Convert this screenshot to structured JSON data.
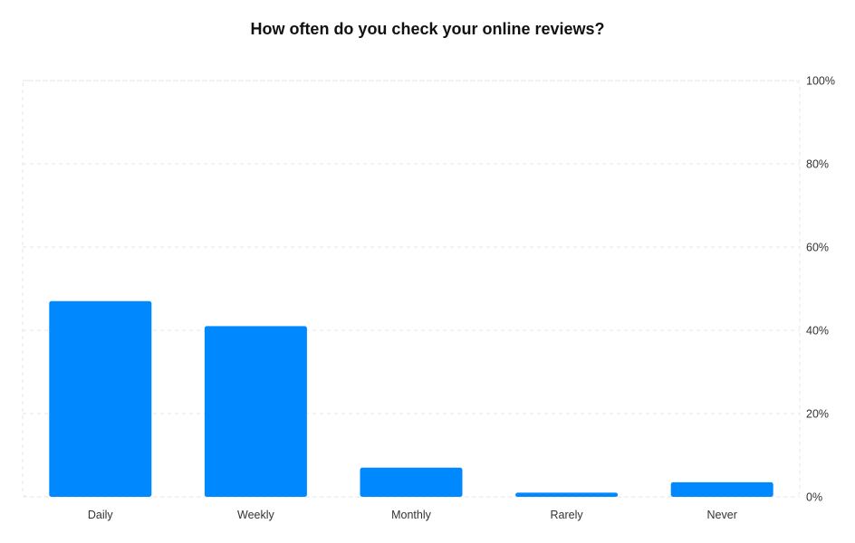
{
  "chart_data": {
    "type": "bar",
    "title": "How often do you check your online reviews?",
    "categories": [
      "Daily",
      "Weekly",
      "Monthly",
      "Rarely",
      "Never"
    ],
    "values": [
      47,
      41,
      7,
      1,
      3.5
    ],
    "ylim": [
      0,
      100
    ],
    "yticks": [
      "0%",
      "20%",
      "40%",
      "60%",
      "80%",
      "100%"
    ],
    "ytick_values": [
      0,
      20,
      40,
      60,
      80,
      100
    ],
    "y_axis_side": "right",
    "grid": true,
    "bar_color": "#0088ff",
    "xlabel": "",
    "ylabel": ""
  }
}
